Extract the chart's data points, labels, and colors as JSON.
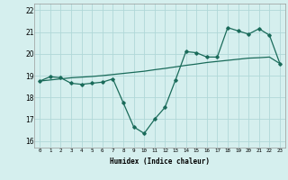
{
  "xlabel": "Humidex (Indice chaleur)",
  "background_color": "#d5efee",
  "grid_color": "#b0d8d8",
  "line_color": "#1a6b5a",
  "x_values": [
    0,
    1,
    2,
    3,
    4,
    5,
    6,
    7,
    8,
    9,
    10,
    11,
    12,
    13,
    14,
    15,
    16,
    17,
    18,
    19,
    20,
    21,
    22,
    23
  ],
  "y_curve": [
    18.75,
    18.95,
    18.9,
    18.65,
    18.6,
    18.65,
    18.7,
    18.85,
    17.75,
    16.65,
    16.35,
    17.0,
    17.55,
    18.8,
    20.1,
    20.05,
    19.85,
    19.85,
    21.2,
    21.05,
    20.9,
    21.15,
    20.85,
    19.55
  ],
  "y_trend": [
    18.75,
    18.8,
    18.85,
    18.9,
    18.93,
    18.96,
    19.0,
    19.05,
    19.1,
    19.15,
    19.2,
    19.27,
    19.33,
    19.4,
    19.47,
    19.53,
    19.6,
    19.65,
    19.7,
    19.75,
    19.8,
    19.82,
    19.85,
    19.55
  ],
  "ylim": [
    15.7,
    22.3
  ],
  "xlim": [
    -0.5,
    23.5
  ],
  "yticks": [
    16,
    17,
    18,
    19,
    20,
    21,
    22
  ],
  "xticks": [
    0,
    1,
    2,
    3,
    4,
    5,
    6,
    7,
    8,
    9,
    10,
    11,
    12,
    13,
    14,
    15,
    16,
    17,
    18,
    19,
    20,
    21,
    22,
    23
  ]
}
